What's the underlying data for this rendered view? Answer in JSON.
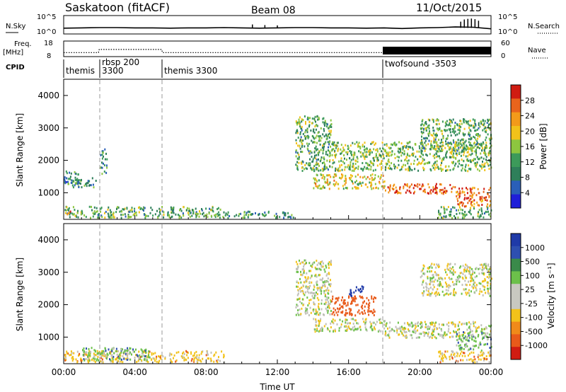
{
  "header": {
    "title": "Saskatoon (fitACF)",
    "beam": "Beam 08",
    "date": "11/Oct/2015"
  },
  "panels": {
    "nsky": {
      "left_label": "N.Sky",
      "left_ticks": [
        "10^5",
        "10^0"
      ],
      "right_ticks": [
        "10^5",
        "10^0"
      ],
      "right_label": "N.Search"
    },
    "freq": {
      "left_label_1": "Freq.",
      "left_label_2": "[MHz]",
      "left_ticks": [
        "18",
        "8"
      ],
      "right_ticks": [
        "60",
        "0"
      ],
      "right_label": "Nave"
    },
    "cpid": {
      "label": "CPID",
      "segments": [
        {
          "name": "themis",
          "time": 0.0
        },
        {
          "name": "rbsp 200",
          "time": 2.0
        },
        {
          "name": "3300",
          "time": 2.0
        },
        {
          "name": "themis 3300",
          "time": 5.55
        },
        {
          "name": "twofsound -3503",
          "time": 18.0
        }
      ]
    },
    "power": {
      "cbar_label": "Power [dB]",
      "cbar_ticks": [
        "28",
        "24",
        "20",
        "16",
        "12",
        "8",
        "4"
      ]
    },
    "velocity": {
      "cbar_label": "Velocity [m s⁻¹]",
      "cbar_ticks": [
        "1000",
        "500",
        "100",
        "25",
        "-25",
        "-100",
        "-500",
        "-1000"
      ]
    }
  },
  "axis": {
    "xlabel": "Time UT",
    "ylabel": "Slant Range [km]"
  },
  "colors": {
    "power_scale": [
      "#1f1fd8",
      "#2a5fb8",
      "#2e7f5a",
      "#3c9a5a",
      "#8dc63f",
      "#f2c21a",
      "#f39a1a",
      "#e8641c",
      "#d01c12"
    ],
    "velocity_scale": [
      "#1f3aa8",
      "#2e4fb0",
      "#3a8a4a",
      "#6cc04a",
      "#c8c8c0",
      "#c8c8c0",
      "#f2c21a",
      "#f08a1a",
      "#e85a1a",
      "#d01c12"
    ],
    "ground_scatter": "#c0c0b8"
  },
  "chart_data": [
    {
      "type": "line",
      "title": "Saskatoon (fitACF)",
      "panel": "N.Sky / N.Search",
      "x": [
        0,
        1,
        2,
        3,
        4,
        5,
        6,
        7,
        8,
        9,
        10,
        11,
        12,
        13,
        14,
        15,
        16,
        17,
        18,
        19,
        20,
        21,
        22,
        23,
        24
      ],
      "series": [
        {
          "name": "N.Sky",
          "values": [
            1.4,
            1.5,
            1.6,
            1.6,
            1.5,
            1.5,
            1.4,
            1.5,
            1.5,
            1.6,
            1.5,
            1.4,
            1.5,
            1.6,
            1.6,
            1.5,
            1.5,
            1.4,
            1.5,
            1.3,
            1.5,
            1.6,
            1.8,
            1.7,
            1.2
          ]
        }
      ],
      "ylim": [
        0,
        5
      ]
    },
    {
      "type": "line",
      "panel": "Freq. / Nave",
      "x": [
        0,
        1.95,
        2.0,
        5.5,
        5.55,
        18.0,
        24
      ],
      "series": [
        {
          "name": "Freq. [MHz]",
          "values": [
            10.6,
            10.6,
            12.6,
            12.6,
            10.6,
            10.6,
            10.6
          ]
        }
      ],
      "ylim": [
        8,
        18
      ]
    },
    {
      "type": "heatmap",
      "panel": "Power [dB]",
      "xlabel": "Time UT",
      "ylabel": "Slant Range [km]",
      "xlim": [
        0,
        24
      ],
      "ylim": [
        180,
        4500
      ],
      "x_ticks": [
        "00:00",
        "04:00",
        "08:00",
        "12:00",
        "16:00",
        "20:00",
        "00:00"
      ],
      "y_ticks": [
        1000,
        2000,
        3000,
        4000
      ],
      "cbar_range": [
        0,
        30
      ],
      "regions": [
        {
          "t": [
            0,
            9
          ],
          "range": [
            250,
            600
          ],
          "value": 12
        },
        {
          "t": [
            0.1,
            0.4
          ],
          "range": [
            350,
            500
          ],
          "value": 28
        },
        {
          "t": [
            0,
            0.8
          ],
          "range": [
            1300,
            1700
          ],
          "value": 8
        },
        {
          "t": [
            0.2,
            1.8
          ],
          "range": [
            1200,
            1500
          ],
          "value": 10
        },
        {
          "t": [
            2.0,
            2.4
          ],
          "range": [
            1600,
            2400
          ],
          "value": 10
        },
        {
          "t": [
            9,
            13
          ],
          "range": [
            250,
            450
          ],
          "value": 10
        },
        {
          "t": [
            13,
            15
          ],
          "range": [
            1700,
            3400
          ],
          "value": 12
        },
        {
          "t": [
            14,
            18
          ],
          "range": [
            1150,
            1600
          ],
          "value": 18
        },
        {
          "t": [
            18,
            22
          ],
          "range": [
            1000,
            1300
          ],
          "value": 26
        },
        {
          "t": [
            22,
            24
          ],
          "range": [
            600,
            1200
          ],
          "value": 24
        },
        {
          "t": [
            15,
            24
          ],
          "range": [
            1700,
            2600
          ],
          "value": 14
        },
        {
          "t": [
            20,
            24
          ],
          "range": [
            2300,
            3300
          ],
          "value": 12
        },
        {
          "t": [
            21,
            24
          ],
          "range": [
            250,
            600
          ],
          "value": 12
        }
      ]
    },
    {
      "type": "heatmap",
      "panel": "Velocity [m s-1]",
      "xlabel": "Time UT",
      "ylabel": "Slant Range [km]",
      "xlim": [
        0,
        24
      ],
      "ylim": [
        180,
        4500
      ],
      "x_ticks": [
        "00:00",
        "04:00",
        "08:00",
        "12:00",
        "16:00",
        "20:00",
        "00:00"
      ],
      "y_ticks": [
        1000,
        2000,
        3000,
        4000
      ],
      "cbar_range": [
        -1000,
        1000
      ],
      "regions": [
        {
          "t": [
            0,
            9
          ],
          "range": [
            250,
            600
          ],
          "value": -60
        },
        {
          "t": [
            1,
            5
          ],
          "range": [
            300,
            700
          ],
          "value": 60
        },
        {
          "t": [
            13,
            15
          ],
          "range": [
            1700,
            3400
          ],
          "value": 0
        },
        {
          "t": [
            14,
            18
          ],
          "range": [
            1200,
            1600
          ],
          "value": 0
        },
        {
          "t": [
            15,
            17.5
          ],
          "range": [
            1700,
            2300
          ],
          "value": -300
        },
        {
          "t": [
            16,
            16.8
          ],
          "range": [
            2300,
            2600
          ],
          "value": 600
        },
        {
          "t": [
            18,
            24
          ],
          "range": [
            1000,
            1500
          ],
          "value": 0
        },
        {
          "t": [
            20,
            24
          ],
          "range": [
            2300,
            3300
          ],
          "value": 0
        },
        {
          "t": [
            22,
            24
          ],
          "range": [
            600,
            1200
          ],
          "value": 60
        },
        {
          "t": [
            21,
            24
          ],
          "range": [
            250,
            600
          ],
          "value": -60
        }
      ]
    }
  ]
}
